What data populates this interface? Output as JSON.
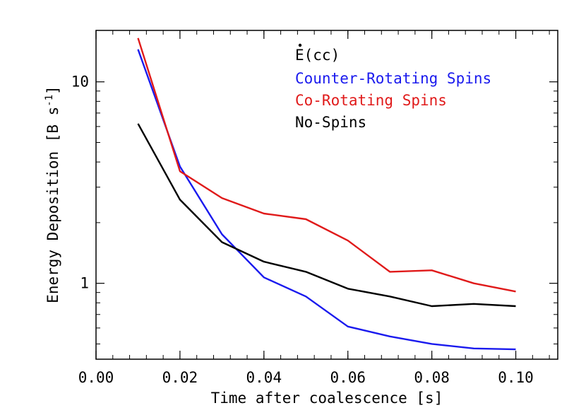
{
  "chart_data": {
    "type": "line",
    "xlabel": "Time after coalescence [s]",
    "ylabel_main": "Energy Deposition [B s",
    "ylabel_sup": "-1",
    "ylabel_close": "]",
    "xlim": [
      0.0,
      0.11
    ],
    "ylim": [
      0.42,
      18.0
    ],
    "yscale": "log",
    "x_ticks": [
      {
        "value": 0.0,
        "label": "0.00"
      },
      {
        "value": 0.02,
        "label": "0.02"
      },
      {
        "value": 0.04,
        "label": "0.04"
      },
      {
        "value": 0.06,
        "label": "0.06"
      },
      {
        "value": 0.08,
        "label": "0.08"
      },
      {
        "value": 0.1,
        "label": "0.10"
      }
    ],
    "y_ticks": [
      {
        "value": 1,
        "label": "1"
      },
      {
        "value": 10,
        "label": "10"
      }
    ],
    "legend": {
      "title": "E(cc)",
      "placement": "top-center"
    },
    "series": [
      {
        "name": "Counter-Rotating Spins",
        "color": "#1a1aee",
        "x": [
          0.01,
          0.02,
          0.03,
          0.04,
          0.05,
          0.06,
          0.07,
          0.08,
          0.09,
          0.1
        ],
        "y": [
          14.5,
          3.8,
          1.75,
          1.07,
          0.86,
          0.61,
          0.545,
          0.5,
          0.475,
          0.47
        ]
      },
      {
        "name": "Co-Rotating Spins",
        "color": "#e01a1a",
        "x": [
          0.01,
          0.02,
          0.03,
          0.04,
          0.05,
          0.06,
          0.07,
          0.08,
          0.09,
          0.1
        ],
        "y": [
          16.5,
          3.6,
          2.65,
          2.22,
          2.08,
          1.63,
          1.14,
          1.16,
          1.0,
          0.91
        ]
      },
      {
        "name": "No-Spins",
        "color": "#000000",
        "x": [
          0.01,
          0.02,
          0.03,
          0.04,
          0.05,
          0.06,
          0.07,
          0.08,
          0.09,
          0.1
        ],
        "y": [
          6.2,
          2.6,
          1.6,
          1.28,
          1.14,
          0.94,
          0.86,
          0.77,
          0.79,
          0.77
        ]
      }
    ]
  }
}
